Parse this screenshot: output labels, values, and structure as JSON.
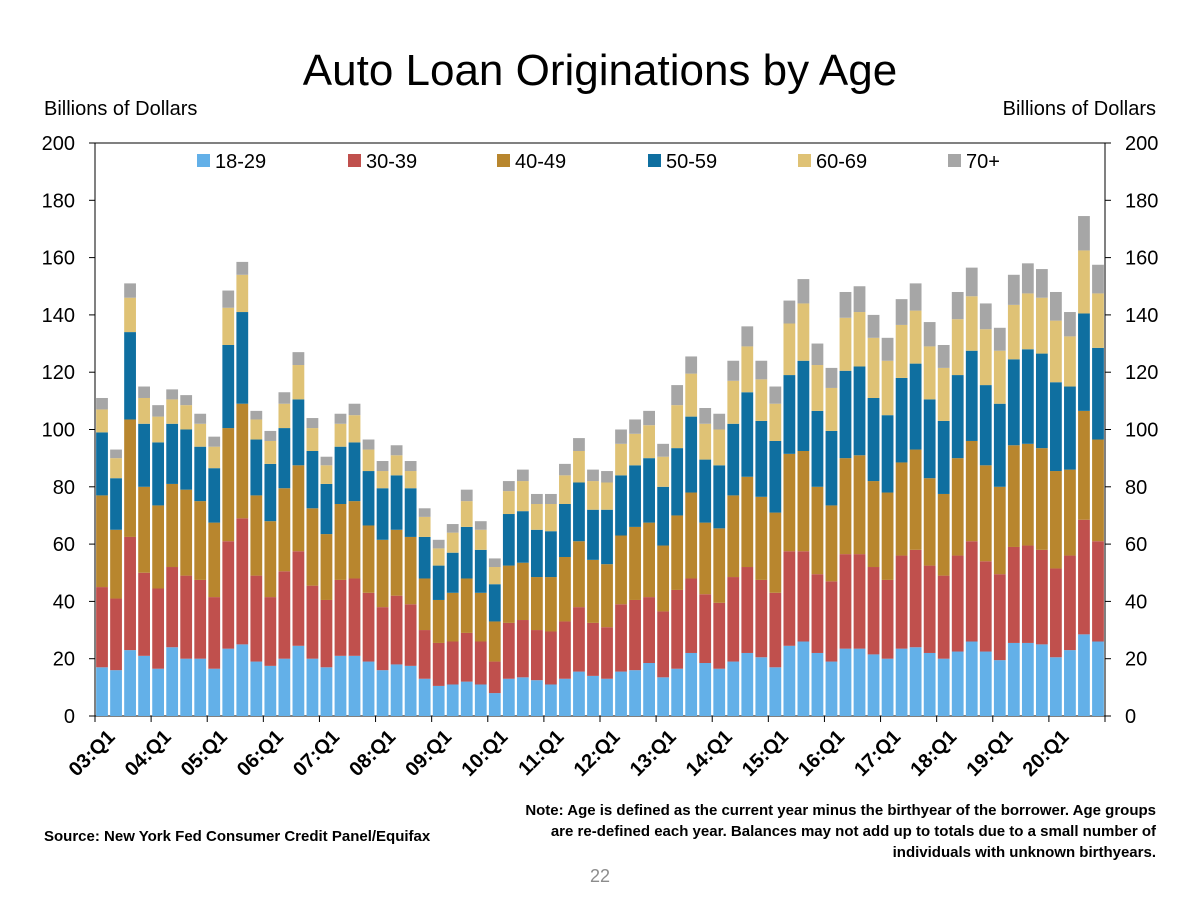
{
  "title": "Auto Loan Originations by Age",
  "left_axis_unit": "Billions of Dollars",
  "right_axis_unit": "Billions of Dollars",
  "source": "Source: New York Fed Consumer Credit Panel/Equifax",
  "note": "Note: Age is defined as the current year minus the birthyear of the borrower. Age groups are re-defined each year. Balances may not add up to totals due to a small number of individuals with unknown birthyears.",
  "page_number": "22",
  "chart_data": {
    "type": "bar",
    "stacked": true,
    "title": "Auto Loan Originations by Age",
    "ylabel": "Billions of Dollars",
    "ylim": [
      0,
      200
    ],
    "y_ticks": [
      0,
      20,
      40,
      60,
      80,
      100,
      120,
      140,
      160,
      180,
      200
    ],
    "grid": false,
    "legend_position": "top",
    "x_tick_labels": [
      "03:Q1",
      "04:Q1",
      "05:Q1",
      "06:Q1",
      "07:Q1",
      "08:Q1",
      "09:Q1",
      "10:Q1",
      "11:Q1",
      "12:Q1",
      "13:Q1",
      "14:Q1",
      "15:Q1",
      "16:Q1",
      "17:Q1",
      "18:Q1",
      "19:Q1",
      "20:Q1"
    ],
    "categories": [
      "03:Q1",
      "03:Q2",
      "03:Q3",
      "03:Q4",
      "04:Q1",
      "04:Q2",
      "04:Q3",
      "04:Q4",
      "05:Q1",
      "05:Q2",
      "05:Q3",
      "05:Q4",
      "06:Q1",
      "06:Q2",
      "06:Q3",
      "06:Q4",
      "07:Q1",
      "07:Q2",
      "07:Q3",
      "07:Q4",
      "08:Q1",
      "08:Q2",
      "08:Q3",
      "08:Q4",
      "09:Q1",
      "09:Q2",
      "09:Q3",
      "09:Q4",
      "10:Q1",
      "10:Q2",
      "10:Q3",
      "10:Q4",
      "11:Q1",
      "11:Q2",
      "11:Q3",
      "11:Q4",
      "12:Q1",
      "12:Q2",
      "12:Q3",
      "12:Q4",
      "13:Q1",
      "13:Q2",
      "13:Q3",
      "13:Q4",
      "14:Q1",
      "14:Q2",
      "14:Q3",
      "14:Q4",
      "15:Q1",
      "15:Q2",
      "15:Q3",
      "15:Q4",
      "16:Q1",
      "16:Q2",
      "16:Q3",
      "16:Q4",
      "17:Q1",
      "17:Q2",
      "17:Q3",
      "17:Q4",
      "18:Q1",
      "18:Q2",
      "18:Q3",
      "18:Q4",
      "19:Q1",
      "19:Q2",
      "19:Q3",
      "19:Q4",
      "20:Q1",
      "20:Q2",
      "20:Q3",
      "20:Q4"
    ],
    "series": [
      {
        "name": "18-29",
        "color": "#63b0e8",
        "values": [
          17,
          16,
          23,
          21,
          16.5,
          24,
          20,
          20,
          16.5,
          23.5,
          25,
          19,
          17.5,
          20,
          24.5,
          20,
          17,
          21,
          21,
          19,
          16,
          18,
          17.5,
          13,
          10.5,
          11,
          12,
          11,
          8,
          13,
          13.5,
          12.5,
          11,
          13,
          15.5,
          14,
          13,
          15.5,
          16,
          18.5,
          13.5,
          16.5,
          22,
          18.5,
          16.5,
          19,
          22,
          20.5,
          17,
          24.5,
          26,
          22,
          19,
          23.5,
          23.5,
          21.5,
          20,
          23.5,
          24,
          22,
          20,
          22.5,
          26,
          22.5,
          19.5,
          25.5,
          25.5,
          25,
          20.5,
          23,
          28.5,
          26
        ]
      },
      {
        "name": "30-39",
        "color": "#c0504d",
        "values": [
          28,
          25,
          39.5,
          29,
          28,
          28,
          29,
          27.5,
          25,
          37.5,
          44,
          30,
          24,
          30.5,
          33,
          25.5,
          23.5,
          26.5,
          27,
          24,
          22,
          24,
          21.5,
          17,
          15,
          15,
          17,
          15,
          11,
          19.5,
          20,
          17.5,
          18.5,
          20,
          22.5,
          18.5,
          18,
          23.5,
          24.5,
          23,
          23,
          27.5,
          26,
          24,
          23,
          29.5,
          30,
          27,
          26,
          33,
          31.5,
          27.5,
          28,
          33,
          33,
          30.5,
          27.5,
          32.5,
          34,
          30.5,
          29,
          33.5,
          35,
          31.5,
          30,
          33.5,
          34,
          33,
          31,
          33,
          40,
          35
        ]
      },
      {
        "name": "40-49",
        "color": "#b8862e",
        "values": [
          32,
          24,
          41,
          30,
          29,
          29,
          30,
          27.5,
          26,
          39.5,
          40,
          28,
          26.5,
          29,
          30,
          27,
          23,
          26.5,
          27,
          23.5,
          23.5,
          23,
          23.5,
          18,
          15,
          17,
          19,
          17,
          14,
          20,
          20,
          18.5,
          19,
          22.5,
          23,
          22,
          22,
          24,
          25.5,
          26,
          23,
          26,
          30,
          25,
          26,
          28.5,
          31.5,
          29,
          28,
          34,
          35,
          30.5,
          26.5,
          33.5,
          34.5,
          30,
          30.5,
          32.5,
          35,
          30.5,
          28.5,
          34,
          35,
          33.5,
          30.5,
          35.5,
          35.5,
          35.5,
          34,
          30,
          38,
          35.5
        ]
      },
      {
        "name": "50-59",
        "color": "#0f6fa0",
        "values": [
          22,
          18,
          30.5,
          22,
          22,
          21,
          21,
          19,
          19,
          29,
          32,
          19.5,
          20,
          21,
          23,
          20,
          17.5,
          20,
          20.5,
          19,
          18,
          19,
          17,
          14.5,
          12,
          14,
          18,
          15,
          13,
          18,
          18,
          16.5,
          16,
          18.5,
          20.5,
          17.5,
          19,
          21,
          21.5,
          22.5,
          20.5,
          23.5,
          26.5,
          22,
          22,
          25,
          29.5,
          26.5,
          25,
          27.5,
          31.5,
          26.5,
          26,
          30.5,
          31,
          29,
          27,
          29.5,
          30,
          27.5,
          25.5,
          29,
          31.5,
          28,
          29,
          30,
          33,
          33,
          31,
          29,
          34,
          32
        ]
      },
      {
        "name": "60-69",
        "color": "#dfc275",
        "values": [
          8,
          7,
          12,
          9,
          9,
          8.5,
          8.5,
          8,
          7.5,
          13,
          13,
          7,
          8,
          8.5,
          12,
          8,
          6.5,
          8,
          9.5,
          7.5,
          6,
          7,
          6,
          7,
          6,
          7,
          9,
          7,
          6,
          8,
          10.5,
          9,
          9.5,
          10,
          11,
          10,
          9.5,
          11,
          11,
          11.5,
          10.5,
          15,
          15,
          12.5,
          12.5,
          15,
          16,
          14.5,
          13,
          18,
          20,
          16,
          15,
          18.5,
          19,
          21,
          19,
          18.5,
          18.5,
          18.5,
          18.5,
          19.5,
          19,
          19.5,
          18.5,
          19,
          19.5,
          19.5,
          21.5,
          17.5,
          22,
          19
        ]
      },
      {
        "name": "70+",
        "color": "#a6a6a6",
        "values": [
          4,
          3,
          5,
          4,
          4,
          3.5,
          3.5,
          3.5,
          3.5,
          6,
          4.5,
          3,
          3.5,
          4,
          4.5,
          3.5,
          3,
          3.5,
          4,
          3.5,
          3.5,
          3.5,
          3.5,
          3,
          3,
          3,
          4,
          3,
          3,
          3.5,
          4,
          3.5,
          3.5,
          4,
          4.5,
          4,
          4,
          5,
          5,
          5,
          4.5,
          7,
          6,
          5.5,
          5.5,
          7,
          7,
          6.5,
          6,
          8,
          8.5,
          7.5,
          7,
          9,
          9,
          8,
          8,
          9,
          9.5,
          8.5,
          8,
          9.5,
          10,
          9,
          8,
          10.5,
          10.5,
          10,
          10,
          8.5,
          12,
          10
        ]
      }
    ]
  }
}
